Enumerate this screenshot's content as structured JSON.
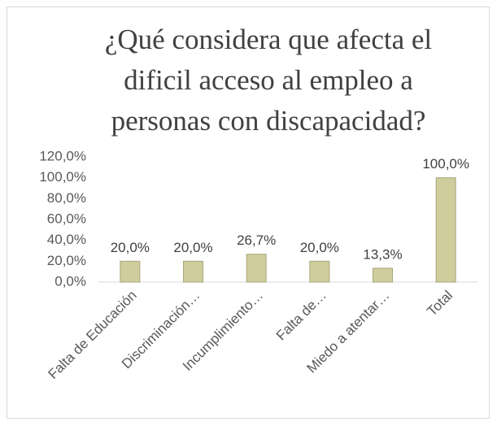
{
  "chart_data": {
    "type": "bar",
    "title": "¿Qué considera que afecta el dificil acceso al empleo a personas con discapacidad?",
    "categories": [
      "Falta de Educación",
      "Discriminación…",
      "Incumplimiento…",
      "Falta de…",
      "Miedo a atentar…",
      "Total"
    ],
    "values": [
      20,
      20,
      26.7,
      20,
      13.3,
      100
    ],
    "value_labels": [
      "20,0%",
      "20,0%",
      "26,7%",
      "20,0%",
      "13,3%",
      "100,0%"
    ],
    "color": "#d0cd9c",
    "ylim": [
      0,
      120
    ],
    "yticks": [
      {
        "value": 0,
        "label": "0,0%"
      },
      {
        "value": 20,
        "label": "20,0%"
      },
      {
        "value": 40,
        "label": "40,0%"
      },
      {
        "value": 60,
        "label": "60,0%"
      },
      {
        "value": 80,
        "label": "80,0%"
      },
      {
        "value": 100,
        "label": "100,0%"
      },
      {
        "value": 120,
        "label": "120,0%"
      }
    ],
    "grid": false
  }
}
